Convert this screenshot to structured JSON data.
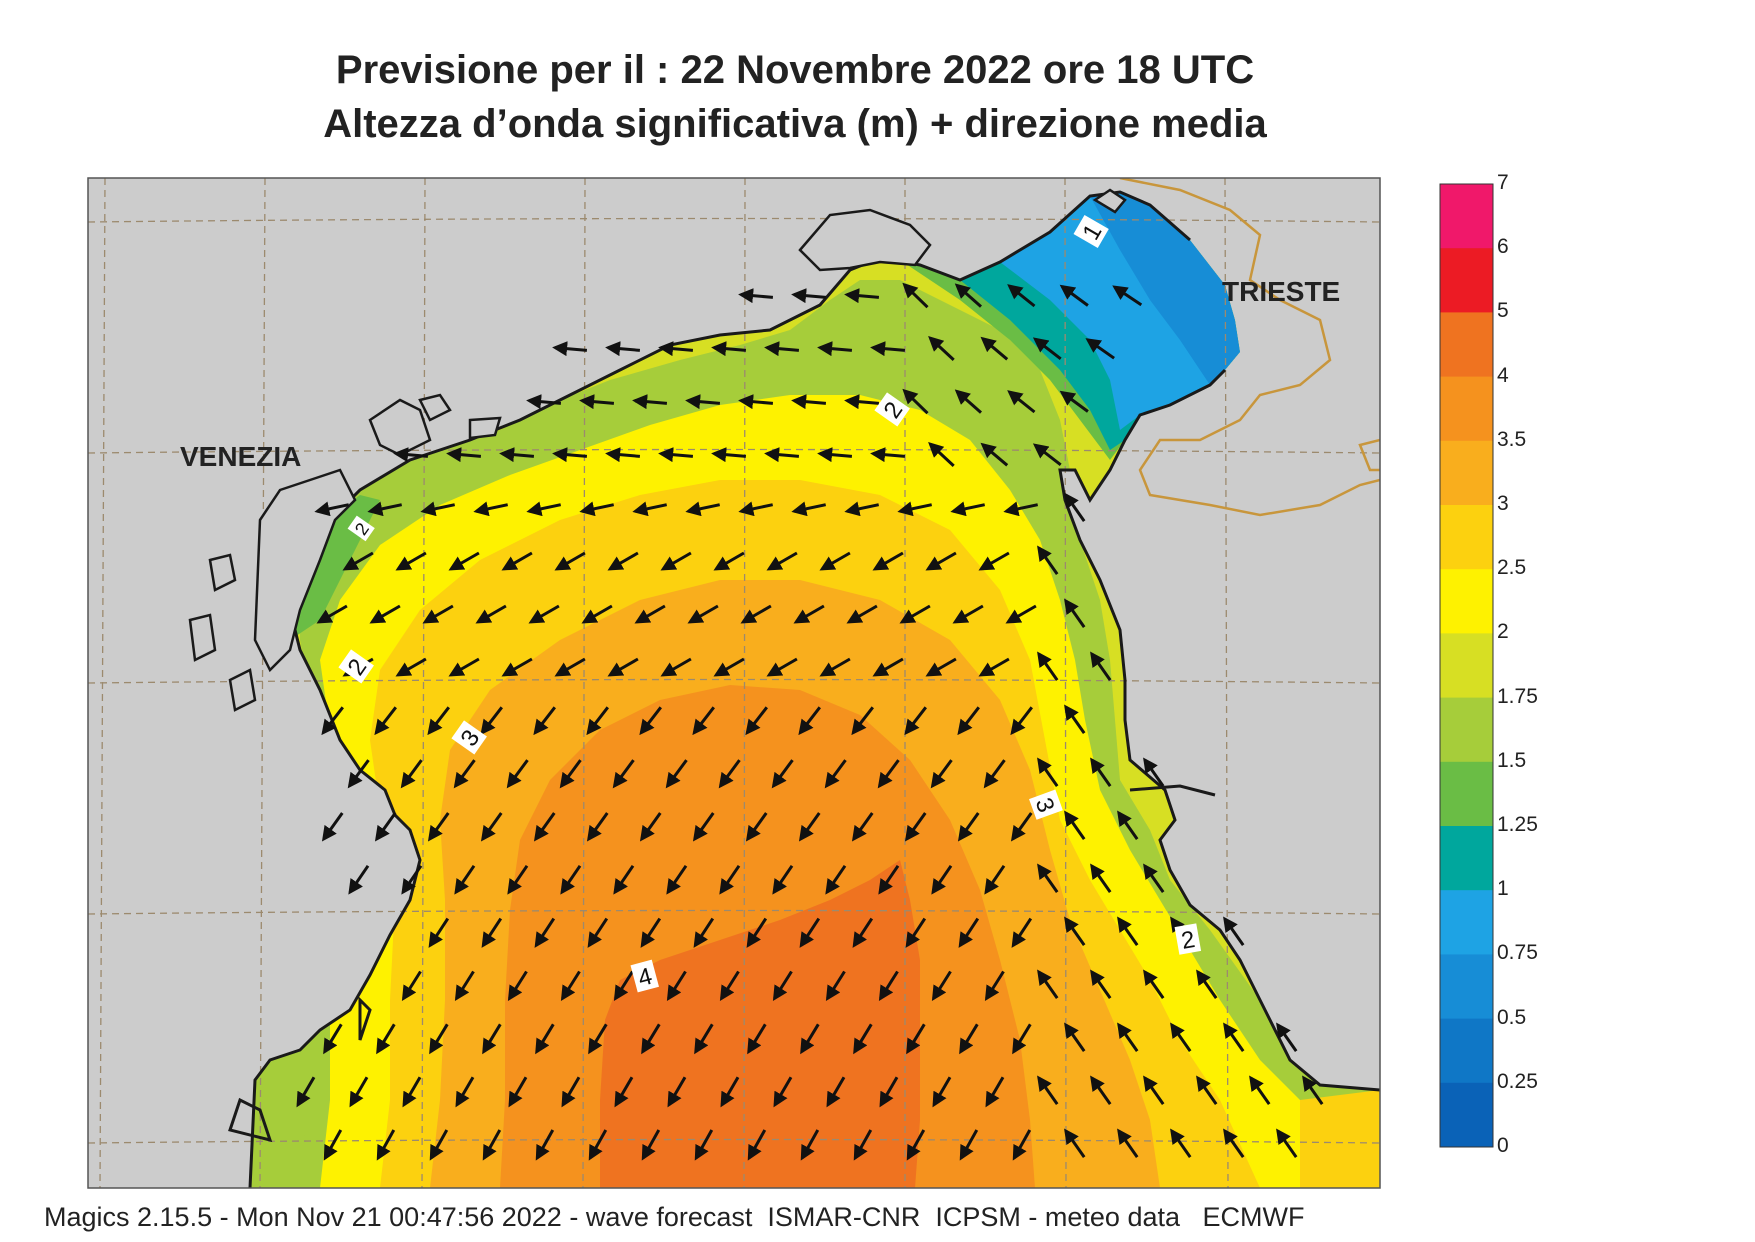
{
  "header": {
    "title_line1": "Previsione per il  :  22 Novembre  2022   ore 18 UTC",
    "title_line2": "Altezza d’onda significativa (m) + direzione media"
  },
  "map": {
    "places": [
      {
        "name": "VENEZIA"
      },
      {
        "name": "TRIESTE"
      }
    ],
    "contour_labels": [
      "1",
      "2",
      "2",
      "3",
      "3",
      "4",
      "2",
      "2"
    ],
    "colors": {
      "land": "#cccccc",
      "coast": "#1a1a1a",
      "border": "#c8963c",
      "grid": "#9c8a6e",
      "arrow": "#111111"
    }
  },
  "legend": {
    "ticks": [
      "7",
      "6",
      "5",
      "4",
      "3.5",
      "3",
      "2.5",
      "2",
      "1.75",
      "1.5",
      "1.25",
      "1",
      "0.75",
      "0.5",
      "0.25",
      "0"
    ],
    "bands": [
      {
        "from": "6",
        "to": "7",
        "color": "#f0186a"
      },
      {
        "from": "5",
        "to": "6",
        "color": "#ec1b24"
      },
      {
        "from": "4",
        "to": "5",
        "color": "#ef7320"
      },
      {
        "from": "3.5",
        "to": "4",
        "color": "#f5921e"
      },
      {
        "from": "3",
        "to": "3.5",
        "color": "#f9ae1d"
      },
      {
        "from": "2.5",
        "to": "3",
        "color": "#fcd10f"
      },
      {
        "from": "2",
        "to": "2.5",
        "color": "#fef200"
      },
      {
        "from": "1.75",
        "to": "2",
        "color": "#d7df23"
      },
      {
        "from": "1.5",
        "to": "1.75",
        "color": "#a6cd3a"
      },
      {
        "from": "1.25",
        "to": "1.5",
        "color": "#6abd45"
      },
      {
        "from": "1",
        "to": "1.25",
        "color": "#00a79d"
      },
      {
        "from": "0.75",
        "to": "1",
        "color": "#1ea3e4"
      },
      {
        "from": "0.5",
        "to": "0.75",
        "color": "#178dd6"
      },
      {
        "from": "0.25",
        "to": "0.5",
        "color": "#0f77c6"
      },
      {
        "from": "0",
        "to": "0.25",
        "color": "#0a62b7"
      }
    ]
  },
  "footer": {
    "text": "Magics 2.15.5 - Mon Nov 21 00:47:56 2022 - wave forecast  ISMAR-CNR  ICPSM - meteo data   ECMWF"
  }
}
